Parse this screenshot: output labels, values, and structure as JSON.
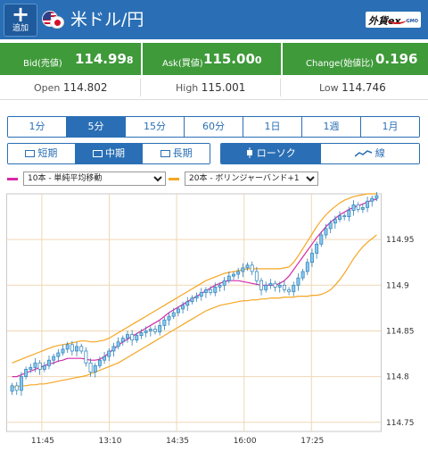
{
  "header": {
    "add_label": "追加",
    "pair_title": "米ドル/円",
    "logo_text": "外貨ex",
    "logo_sub": "GMO"
  },
  "prices": {
    "bid_label": "Bid(売値)",
    "bid_main": "114.99",
    "bid_pip": "8",
    "ask_label": "Ask(買値)",
    "ask_main": "115.00",
    "ask_pip": "0",
    "change_label": "Change(始値比)",
    "change_value": "0.196"
  },
  "stats": {
    "open_label": "Open",
    "open_value": "114.802",
    "high_label": "High",
    "high_value": "115.001",
    "low_label": "Low",
    "low_value": "114.746"
  },
  "intervals": [
    "1分",
    "5分",
    "15分",
    "60分",
    "1日",
    "1週",
    "1月"
  ],
  "active_interval": "5分",
  "terms": [
    "短期",
    "中期",
    "長期"
  ],
  "active_term": "中期",
  "chart_types": [
    "ローソク",
    "線"
  ],
  "active_type": "ローソク",
  "indicators": {
    "ma_label": "10本 - 単純平均移動",
    "ma_color": "#d62aa8",
    "bb_label": "20本 - ボリンジャーバンド+1",
    "bb_color": "#f5a623"
  },
  "colors": {
    "header": "#2a6fb5",
    "price_bg": "#3f9a3a",
    "candle_fill": "#87c7ee",
    "candle_stroke": "#2c7fb8",
    "ma": "#d62aa8",
    "bb": "#f5a623"
  },
  "chart_data": {
    "type": "candlestick",
    "x_tick_labels": [
      "11:45",
      "13:10",
      "14:35",
      "16:00",
      "17:25"
    ],
    "y_tick_labels": [
      "114.95",
      "114.9",
      "114.85",
      "114.8",
      "114.75"
    ],
    "y_ticks": [
      114.95,
      114.9,
      114.85,
      114.8,
      114.75
    ],
    "ylim": [
      114.74,
      115.0
    ],
    "grid": true,
    "close": [
      114.79,
      114.785,
      114.8,
      114.808,
      114.81,
      114.815,
      114.808,
      114.812,
      114.818,
      114.822,
      114.826,
      114.83,
      114.835,
      114.828,
      114.833,
      114.828,
      114.815,
      114.805,
      114.812,
      114.818,
      114.822,
      114.828,
      114.833,
      114.838,
      114.842,
      114.846,
      114.84,
      114.845,
      114.848,
      114.85,
      114.852,
      114.849,
      114.856,
      114.862,
      114.866,
      114.87,
      114.874,
      114.878,
      114.882,
      114.886,
      114.888,
      114.892,
      114.895,
      114.892,
      114.898,
      114.9,
      114.905,
      114.91,
      114.912,
      114.915,
      114.919,
      114.922,
      114.915,
      114.905,
      114.895,
      114.9,
      114.902,
      114.898,
      114.9,
      114.895,
      114.893,
      114.9,
      114.908,
      114.915,
      114.925,
      114.935,
      114.945,
      114.955,
      114.962,
      114.968,
      114.972,
      114.976,
      114.975,
      114.982,
      114.988,
      114.983,
      114.985,
      114.992,
      114.995,
      114.998
    ],
    "ma": [
      114.8,
      114.8,
      114.802,
      114.804,
      114.806,
      114.808,
      114.81,
      114.812,
      114.814,
      114.815,
      114.817,
      114.818,
      114.82,
      114.82,
      114.82,
      114.82,
      114.819,
      114.818,
      114.818,
      114.819,
      114.822,
      114.826,
      114.83,
      114.834,
      114.838,
      114.841,
      114.844,
      114.847,
      114.85,
      114.853,
      114.856,
      114.859,
      114.862,
      114.866,
      114.87,
      114.873,
      114.876,
      114.879,
      114.882,
      114.885,
      114.888,
      114.891,
      114.894,
      114.897,
      114.9,
      114.902,
      114.904,
      114.905,
      114.905,
      114.905,
      114.904,
      114.903,
      114.902,
      114.901,
      114.9,
      114.9,
      114.9,
      114.9,
      114.902,
      114.905,
      114.91,
      114.917,
      114.924,
      114.931,
      114.938,
      114.945,
      114.952,
      114.958,
      114.964,
      114.969,
      114.973,
      114.977,
      114.98,
      114.983,
      114.985,
      114.987,
      114.989,
      114.991,
      114.993,
      114.994
    ],
    "bb_upper": [
      114.815,
      114.817,
      114.819,
      114.821,
      114.823,
      114.825,
      114.827,
      114.829,
      114.831,
      114.833,
      114.834,
      114.835,
      114.836,
      114.837,
      114.838,
      114.839,
      114.839,
      114.838,
      114.838,
      114.839,
      114.84,
      114.842,
      114.845,
      114.848,
      114.851,
      114.854,
      114.857,
      114.86,
      114.863,
      114.866,
      114.869,
      114.872,
      114.875,
      114.878,
      114.881,
      114.884,
      114.887,
      114.89,
      114.893,
      114.896,
      114.899,
      114.902,
      114.905,
      114.907,
      114.909,
      114.911,
      114.913,
      114.914,
      114.915,
      114.916,
      114.917,
      114.918,
      114.918,
      114.918,
      114.918,
      114.918,
      114.918,
      114.918,
      114.918,
      114.919,
      114.92,
      114.925,
      114.932,
      114.94,
      114.948,
      114.956,
      114.964,
      114.971,
      114.977,
      114.982,
      114.986,
      114.99,
      114.993,
      114.995,
      114.997,
      114.998,
      114.999,
      115.0,
      115.0,
      115.0
    ],
    "bb_lower": [
      114.788,
      114.789,
      114.79,
      114.79,
      114.791,
      114.791,
      114.792,
      114.792,
      114.793,
      114.794,
      114.795,
      114.796,
      114.797,
      114.798,
      114.799,
      114.8,
      114.801,
      114.803,
      114.805,
      114.807,
      114.809,
      114.811,
      114.813,
      114.815,
      114.818,
      114.821,
      114.824,
      114.827,
      114.83,
      114.833,
      114.836,
      114.839,
      114.842,
      114.845,
      114.848,
      114.851,
      114.854,
      114.857,
      114.86,
      114.863,
      114.866,
      114.869,
      114.872,
      114.874,
      114.876,
      114.878,
      114.879,
      114.88,
      114.881,
      114.882,
      114.883,
      114.883,
      114.884,
      114.884,
      114.885,
      114.885,
      114.886,
      114.886,
      114.886,
      114.887,
      114.887,
      114.887,
      114.888,
      114.888,
      114.888,
      114.889,
      114.889,
      114.89,
      114.892,
      114.895,
      114.9,
      114.906,
      114.913,
      114.921,
      114.929,
      114.936,
      114.942,
      114.947,
      114.951,
      114.955
    ]
  }
}
